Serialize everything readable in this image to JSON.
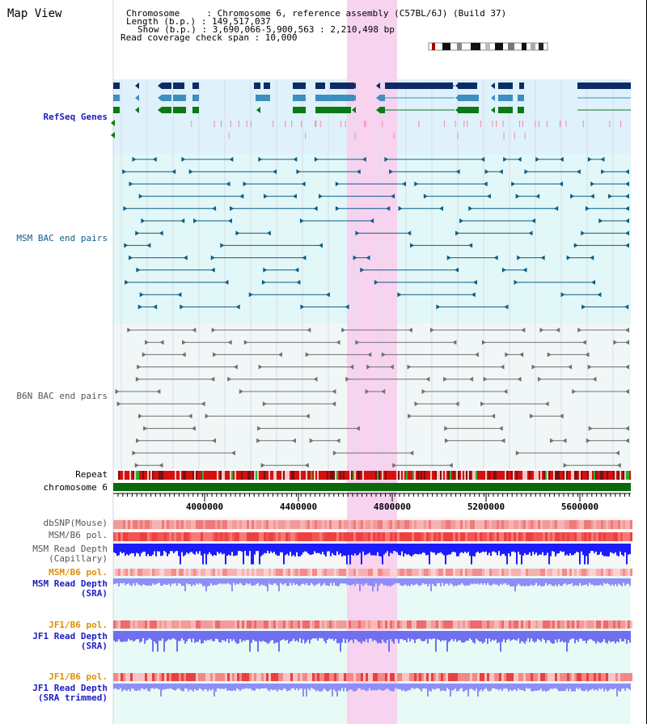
{
  "header": {
    "title": "Map View",
    "chromosome": "Chromosome     : Chromosome 6, reference assembly (C57BL/6J) (Build 37)",
    "length": "Length (b.p.) : 149,517,037",
    "show": "Show (b.p.) : 3,690,066-5,900,563 : 2,210,498 bp",
    "coverage": "Read coverage check span : 10,000"
  },
  "tracks": {
    "refseq": "RefSeq Genes",
    "msm_bac": "MSM BAC end pairs",
    "b6n_bac": "B6N BAC end pairs",
    "repeat": "Repeat",
    "chromosome": "chromosome 6",
    "dbsnp": "dbSNP(Mouse)",
    "msm_b6_pol": "MSM/B6 pol.",
    "msm_depth_cap_1": "MSM Read Depth",
    "msm_depth_cap_2": "(Capillary)",
    "msm_b6_pol2": "MSM/B6 pol.",
    "msm_depth_sra_1": "MSM Read Depth",
    "msm_depth_sra_2": "(SRA)",
    "jf1_b6_pol": "JF1/B6 pol.",
    "jf1_depth_sra_1": "JF1 Read Depth",
    "jf1_depth_sra_2": "(SRA)",
    "jf1_b6_pol2": "JF1/B6 pol.",
    "jf1_depth_trim_1": "JF1 Read Depth",
    "jf1_depth_trim_2": "(SRA trimmed)"
  },
  "axis": {
    "ticks": [
      "4000000",
      "4400000",
      "4800000",
      "5200000",
      "5600000"
    ]
  },
  "colors": {
    "highlight": "#f7d3f0",
    "refseq_bg": "#dff1fb",
    "msm_bg": "#e2f7f7",
    "b6n_bg": "#f1f7f7",
    "gene_dark": "#0b2c64",
    "gene_mid": "#3d8fbf",
    "gene_green": "#0a7a12",
    "msm_pair": "#0d5e86",
    "b6n_pair": "#707070",
    "chromosome_bar": "#0a6a0a",
    "depth_blue": "#1c1cff",
    "depth_light": "#8e8ef7",
    "label_blue": "#1d1dc4",
    "label_teal": "#0f5f88",
    "label_orange": "#e09000"
  }
}
